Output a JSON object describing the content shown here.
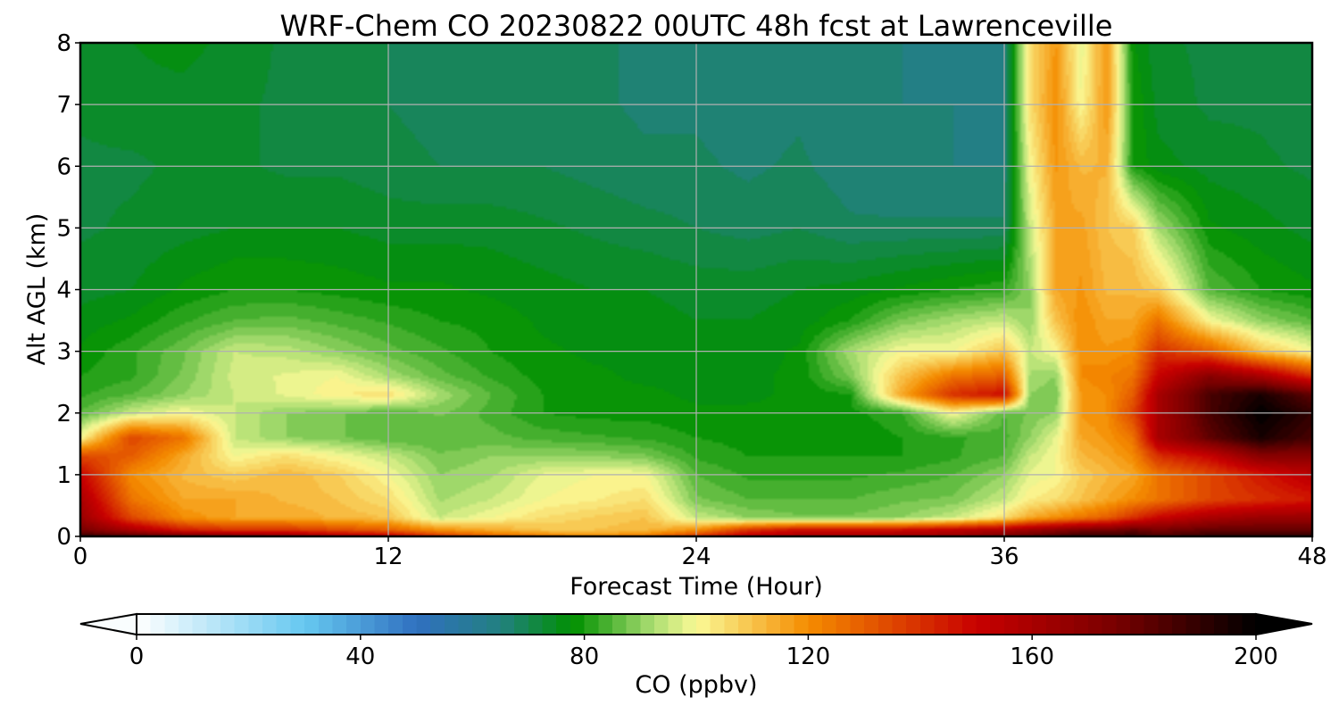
{
  "chart_data": {
    "type": "heatmap",
    "title": "WRF-Chem CO  20230822 00UTC 48h fcst at Lawrenceville",
    "xlabel": "Forecast Time (Hour)",
    "ylabel": "Alt AGL (km)",
    "xlim": [
      0,
      48
    ],
    "ylim": [
      0,
      8
    ],
    "x_ticks": [
      "0",
      "12",
      "24",
      "36",
      "48"
    ],
    "y_ticks": [
      "0",
      "1",
      "2",
      "3",
      "4",
      "5",
      "6",
      "7",
      "8"
    ],
    "grid": true,
    "colorbar": {
      "label": "CO  (ppbv)",
      "range": [
        0,
        200
      ],
      "ticks": [
        "0",
        "40",
        "80",
        "120",
        "160",
        "200"
      ],
      "extend": "both",
      "stops": [
        {
          "value": 0,
          "color": "#ffffff"
        },
        {
          "value": 30,
          "color": "#66c8f0"
        },
        {
          "value": 50,
          "color": "#3070c0"
        },
        {
          "value": 65,
          "color": "#228080"
        },
        {
          "value": 78,
          "color": "#009000"
        },
        {
          "value": 92,
          "color": "#a8dc70"
        },
        {
          "value": 100,
          "color": "#fafa96"
        },
        {
          "value": 120,
          "color": "#f58c00"
        },
        {
          "value": 150,
          "color": "#c80000"
        },
        {
          "value": 175,
          "color": "#780000"
        },
        {
          "value": 200,
          "color": "#000000"
        }
      ]
    },
    "x_hours": [
      0,
      2,
      4,
      6,
      8,
      10,
      12,
      14,
      16,
      18,
      20,
      22,
      24,
      26,
      28,
      30,
      32,
      34,
      36,
      37,
      38,
      39,
      40,
      41,
      42,
      44,
      46,
      48
    ],
    "y_km": [
      0,
      0.1,
      0.3,
      0.6,
      1.0,
      1.3,
      1.6,
      2.0,
      2.3,
      2.6,
      3.0,
      3.5,
      4.0,
      5.0,
      6.0,
      7.0,
      8.0
    ],
    "z_ppbv": [
      [
        190,
        185,
        180,
        175,
        170,
        160,
        155,
        140,
        130,
        125,
        120,
        125,
        140,
        155,
        160,
        160,
        165,
        165,
        175,
        180,
        185,
        190,
        190,
        190,
        185,
        190,
        190,
        190
      ],
      [
        175,
        160,
        145,
        140,
        140,
        135,
        130,
        120,
        115,
        110,
        110,
        112,
        120,
        140,
        150,
        150,
        150,
        155,
        160,
        165,
        170,
        175,
        175,
        180,
        175,
        180,
        180,
        180
      ],
      [
        165,
        135,
        120,
        115,
        115,
        112,
        110,
        95,
        100,
        105,
        108,
        110,
        95,
        90,
        88,
        88,
        90,
        95,
        105,
        115,
        120,
        125,
        130,
        140,
        150,
        160,
        165,
        165
      ],
      [
        160,
        125,
        115,
        115,
        112,
        110,
        105,
        92,
        95,
        100,
        102,
        105,
        88,
        85,
        85,
        85,
        87,
        88,
        95,
        102,
        105,
        110,
        115,
        120,
        125,
        135,
        140,
        145
      ],
      [
        150,
        120,
        112,
        108,
        112,
        108,
        100,
        90,
        92,
        98,
        100,
        100,
        85,
        82,
        82,
        82,
        83,
        85,
        90,
        98,
        100,
        108,
        112,
        115,
        125,
        135,
        145,
        155
      ],
      [
        135,
        130,
        115,
        100,
        105,
        100,
        95,
        88,
        90,
        90,
        90,
        88,
        82,
        80,
        80,
        80,
        80,
        82,
        85,
        95,
        100,
        112,
        115,
        120,
        140,
        150,
        170,
        170
      ],
      [
        100,
        135,
        125,
        95,
        90,
        88,
        85,
        85,
        86,
        84,
        83,
        82,
        80,
        79,
        78,
        78,
        80,
        82,
        84,
        90,
        98,
        115,
        118,
        125,
        160,
        180,
        195,
        185
      ],
      [
        85,
        95,
        100,
        95,
        90,
        88,
        85,
        88,
        84,
        80,
        79,
        79,
        78,
        78,
        78,
        79,
        82,
        100,
        85,
        88,
        90,
        118,
        120,
        135,
        160,
        185,
        200,
        190
      ],
      [
        82,
        85,
        90,
        95,
        98,
        102,
        105,
        92,
        85,
        80,
        78,
        78,
        77,
        77,
        78,
        80,
        115,
        140,
        148,
        90,
        88,
        118,
        120,
        130,
        160,
        185,
        195,
        180
      ],
      [
        80,
        82,
        88,
        96,
        98,
        100,
        92,
        86,
        82,
        79,
        78,
        77,
        77,
        77,
        78,
        88,
        110,
        125,
        130,
        92,
        90,
        120,
        122,
        125,
        150,
        170,
        160,
        140
      ],
      [
        78,
        82,
        87,
        95,
        94,
        90,
        86,
        83,
        80,
        78,
        77,
        77,
        76,
        76,
        78,
        92,
        100,
        100,
        110,
        95,
        100,
        120,
        118,
        120,
        140,
        130,
        110,
        100
      ],
      [
        76,
        78,
        82,
        85,
        86,
        84,
        82,
        80,
        79,
        77,
        76,
        76,
        75,
        75,
        76,
        80,
        88,
        92,
        95,
        90,
        110,
        120,
        115,
        115,
        125,
        100,
        90,
        85
      ],
      [
        74,
        75,
        78,
        80,
        80,
        79,
        78,
        78,
        77,
        76,
        75,
        75,
        74,
        74,
        75,
        76,
        78,
        80,
        82,
        90,
        115,
        118,
        112,
        112,
        108,
        85,
        80,
        78
      ],
      [
        72,
        73,
        74,
        75,
        75,
        75,
        74,
        74,
        74,
        73,
        72,
        71,
        70,
        69,
        70,
        68,
        68,
        68,
        68,
        95,
        115,
        116,
        110,
        108,
        92,
        78,
        76,
        74
      ],
      [
        72,
        72,
        73,
        73,
        72,
        72,
        71,
        70,
        70,
        70,
        69,
        68,
        68,
        67,
        68,
        66,
        65,
        65,
        65,
        100,
        118,
        112,
        113,
        80,
        76,
        74,
        73,
        72
      ],
      [
        73,
        74,
        74,
        73,
        72,
        71,
        70,
        69,
        69,
        68,
        68,
        67,
        67,
        66,
        67,
        65,
        65,
        65,
        64,
        105,
        120,
        100,
        118,
        80,
        74,
        72,
        72,
        71
      ],
      [
        74,
        75,
        76,
        74,
        72,
        71,
        70,
        69,
        68,
        68,
        68,
        67,
        67,
        66,
        67,
        65,
        65,
        64,
        64,
        105,
        118,
        98,
        118,
        78,
        73,
        72,
        71,
        71
      ]
    ]
  }
}
